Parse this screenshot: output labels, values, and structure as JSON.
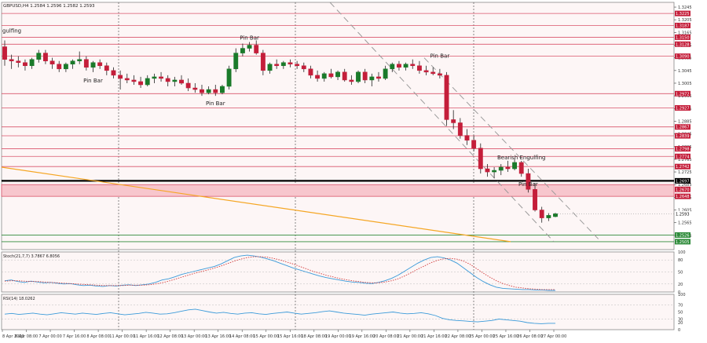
{
  "chart_data": [
    {
      "type": "candlestick",
      "title": "GBPUSD,H4  1.2584 1.2596 1.2582 1.2593",
      "ylim": [
        1.248,
        1.326
      ],
      "y_ticks": [
        "1.3245",
        "1.3205",
        "1.3165",
        "1.3125",
        "1.3085",
        "1.3045",
        "1.3005",
        "1.2965",
        "1.2925",
        "1.2885",
        "1.2845",
        "1.2805",
        "1.2765",
        "1.2725",
        "1.2685",
        "1.2645",
        "1.2605",
        "1.2565",
        "1.2525"
      ],
      "x_ticks": [
        "8 Apr 2022",
        "6 Apr 08:00",
        "7 Apr 00:00",
        "7 Apr 16:00",
        "8 Apr 08:00",
        "11 Apr 00:00",
        "11 Apr 16:00",
        "12 Apr 08:00",
        "13 Apr 00:00",
        "13 Apr 16:00",
        "14 Apr 08:00",
        "15 Apr 00:00",
        "15 Apr 16:00",
        "18 Apr 08:00",
        "19 Apr 00:00",
        "19 Apr 16:00",
        "20 Apr 08:00",
        "21 Apr 00:00",
        "21 Apr 16:00",
        "22 Apr 08:00",
        "25 Apr 00:00",
        "25 Apr 16:00",
        "26 Apr 08:00",
        "27 Apr 00:00"
      ],
      "candles": [
        [
          1.312,
          1.314,
          1.306,
          1.308
        ],
        [
          1.308,
          1.3095,
          1.305,
          1.3075
        ],
        [
          1.3075,
          1.309,
          1.3055,
          1.307
        ],
        [
          1.307,
          1.308,
          1.3045,
          1.306
        ],
        [
          1.306,
          1.3085,
          1.305,
          1.308
        ],
        [
          1.308,
          1.311,
          1.307,
          1.31
        ],
        [
          1.31,
          1.311,
          1.3065,
          1.3075
        ],
        [
          1.3075,
          1.3085,
          1.305,
          1.3065
        ],
        [
          1.3065,
          1.3075,
          1.304,
          1.305
        ],
        [
          1.305,
          1.307,
          1.304,
          1.3065
        ],
        [
          1.3065,
          1.308,
          1.305,
          1.3075
        ],
        [
          1.3075,
          1.3105,
          1.3065,
          1.308
        ],
        [
          1.308,
          1.309,
          1.3045,
          1.3055
        ],
        [
          1.3055,
          1.3075,
          1.304,
          1.307
        ],
        [
          1.307,
          1.308,
          1.305,
          1.306
        ],
        [
          1.306,
          1.307,
          1.303,
          1.3045
        ],
        [
          1.3045,
          1.3055,
          1.302,
          1.303
        ],
        [
          1.303,
          1.3045,
          1.2985,
          1.302
        ],
        [
          1.302,
          1.3035,
          1.3005,
          1.3015
        ],
        [
          1.3015,
          1.303,
          1.3,
          1.301
        ],
        [
          1.301,
          1.3025,
          1.299,
          1.3
        ],
        [
          1.3,
          1.303,
          1.2995,
          1.302
        ],
        [
          1.302,
          1.3035,
          1.3005,
          1.3025
        ],
        [
          1.3025,
          1.304,
          1.301,
          1.302
        ],
        [
          1.302,
          1.303,
          1.2995,
          1.301
        ],
        [
          1.301,
          1.3025,
          1.2995,
          1.3015
        ],
        [
          1.3015,
          1.303,
          1.3,
          1.3005
        ],
        [
          1.3005,
          1.302,
          1.298,
          1.299
        ],
        [
          1.299,
          1.3005,
          1.2975,
          1.2985
        ],
        [
          1.2985,
          1.3,
          1.2965,
          1.2975
        ],
        [
          1.2975,
          1.2995,
          1.297,
          1.2985
        ],
        [
          1.2985,
          1.3,
          1.2965,
          1.2975
        ],
        [
          1.2975,
          1.3,
          1.297,
          1.2995
        ],
        [
          1.2995,
          1.306,
          1.2985,
          1.305
        ],
        [
          1.305,
          1.3115,
          1.304,
          1.31
        ],
        [
          1.31,
          1.313,
          1.309,
          1.3115
        ],
        [
          1.3115,
          1.3135,
          1.3105,
          1.3125
        ],
        [
          1.3125,
          1.314,
          1.3095,
          1.31
        ],
        [
          1.31,
          1.311,
          1.303,
          1.3045
        ],
        [
          1.3045,
          1.307,
          1.3035,
          1.3065
        ],
        [
          1.3065,
          1.308,
          1.305,
          1.306
        ],
        [
          1.306,
          1.3075,
          1.305,
          1.307
        ],
        [
          1.307,
          1.308,
          1.3055,
          1.3065
        ],
        [
          1.3065,
          1.3075,
          1.305,
          1.306
        ],
        [
          1.306,
          1.307,
          1.304,
          1.305
        ],
        [
          1.305,
          1.306,
          1.302,
          1.303
        ],
        [
          1.303,
          1.3045,
          1.301,
          1.302
        ],
        [
          1.302,
          1.304,
          1.301,
          1.3035
        ],
        [
          1.3035,
          1.305,
          1.302,
          1.3025
        ],
        [
          1.3025,
          1.3045,
          1.3015,
          1.304
        ],
        [
          1.304,
          1.305,
          1.301,
          1.3015
        ],
        [
          1.3015,
          1.303,
          1.3,
          1.301
        ],
        [
          1.301,
          1.3045,
          1.3005,
          1.304
        ],
        [
          1.304,
          1.305,
          1.3005,
          1.3015
        ],
        [
          1.3015,
          1.3035,
          1.2995,
          1.3025
        ],
        [
          1.3025,
          1.304,
          1.301,
          1.302
        ],
        [
          1.302,
          1.306,
          1.3015,
          1.305
        ],
        [
          1.305,
          1.307,
          1.304,
          1.3065
        ],
        [
          1.3065,
          1.3075,
          1.3045,
          1.3055
        ],
        [
          1.3055,
          1.307,
          1.3045,
          1.3065
        ],
        [
          1.3065,
          1.308,
          1.305,
          1.306
        ],
        [
          1.306,
          1.3075,
          1.3035,
          1.3045
        ],
        [
          1.3045,
          1.306,
          1.303,
          1.304
        ],
        [
          1.304,
          1.3055,
          1.303,
          1.3035
        ],
        [
          1.3035,
          1.305,
          1.302,
          1.303
        ],
        [
          1.303,
          1.304,
          1.287,
          1.289
        ],
        [
          1.289,
          1.292,
          1.286,
          1.288
        ],
        [
          1.288,
          1.2895,
          1.283,
          1.284
        ],
        [
          1.284,
          1.286,
          1.281,
          1.2825
        ],
        [
          1.2825,
          1.284,
          1.279,
          1.28
        ],
        [
          1.28,
          1.2815,
          1.272,
          1.2735
        ],
        [
          1.2735,
          1.275,
          1.271,
          1.2725
        ],
        [
          1.2725,
          1.274,
          1.2705,
          1.273
        ],
        [
          1.273,
          1.275,
          1.2715,
          1.274
        ],
        [
          1.274,
          1.276,
          1.2725,
          1.2735
        ],
        [
          1.2735,
          1.2765,
          1.273,
          1.2755
        ],
        [
          1.2755,
          1.276,
          1.271,
          1.272
        ],
        [
          1.272,
          1.2735,
          1.266,
          1.267
        ],
        [
          1.267,
          1.269,
          1.26,
          1.2605
        ],
        [
          1.2605,
          1.2615,
          1.2565,
          1.258
        ],
        [
          1.258,
          1.2595,
          1.257,
          1.2588
        ],
        [
          1.2584,
          1.2596,
          1.2582,
          1.2593
        ]
      ],
      "labels": [
        {
          "text": "gulfing",
          "kind": "clipped-left"
        },
        {
          "text": "Pin Bar",
          "at": "candle-13-low"
        },
        {
          "text": "Pin Bar",
          "at": "candle-31-low"
        },
        {
          "text": "Pin Bar",
          "at": "candle-36-high"
        },
        {
          "text": "Pin Bar",
          "at": "candle-64-high"
        },
        {
          "text": "Bearish Engulfing",
          "at": "candle-76-high"
        },
        {
          "text": "Pin Bar",
          "at": "candle-77-low"
        }
      ],
      "levels": [
        1.3225,
        1.3187,
        1.315,
        1.3128,
        1.309,
        1.2972,
        1.2927,
        1.2867,
        1.2839,
        1.2798,
        1.2774,
        1.2742
      ],
      "resistance_zone": [
        1.2648,
        1.2685
      ],
      "key_level": 1.2697,
      "support_levels": [
        1.2526,
        1.2505
      ],
      "price_tags": [
        "1.3225",
        "1.3187",
        "1.3150",
        "1.3128",
        "1.3090",
        "1.2972",
        "1.2927",
        "1.2867",
        "1.2839",
        "1.2798",
        "1.2774",
        "1.2742",
        "1.2697",
        "1.2670",
        "1.2648",
        "1.2593",
        "1.2526",
        "1.2505"
      ],
      "colors": {
        "bull": "#1a7a2a",
        "bear": "#c41e3a",
        "level": "#d9536a",
        "zone": "#f7c6cd",
        "trendline": "#f5a623",
        "channel": "#9a9a9a",
        "tag_bg": "#c41e3a"
      }
    },
    {
      "type": "line",
      "title": "Stoch(21,7,7) 3.7867 6.8056",
      "ylim": [
        0,
        100
      ],
      "y_ticks": [
        "100",
        "80",
        "50",
        "20",
        "0"
      ],
      "series": [
        {
          "name": "main",
          "color": "#3a9ad9",
          "style": "solid",
          "values": [
            28,
            30,
            26,
            24,
            27,
            25,
            23,
            24,
            22,
            20,
            21,
            18,
            16,
            17,
            15,
            14,
            16,
            15,
            17,
            18,
            16,
            18,
            20,
            24,
            30,
            33,
            38,
            44,
            48,
            52,
            56,
            60,
            64,
            70,
            78,
            86,
            90,
            92,
            90,
            87,
            83,
            78,
            72,
            66,
            60,
            55,
            50,
            45,
            40,
            36,
            33,
            30,
            27,
            25,
            24,
            22,
            21,
            24,
            28,
            34,
            42,
            52,
            62,
            72,
            80,
            86,
            88,
            85,
            80,
            72,
            60,
            48,
            36,
            26,
            18,
            12,
            9,
            8,
            7,
            6,
            6,
            5,
            5,
            4,
            4
          ]
        },
        {
          "name": "signal",
          "color": "#d33b3b",
          "style": "dotted",
          "values": [
            27,
            28,
            28,
            27,
            26,
            26,
            25,
            24,
            23,
            22,
            21,
            20,
            19,
            18,
            17,
            16,
            16,
            16,
            16,
            17,
            17,
            17,
            18,
            20,
            23,
            27,
            32,
            37,
            42,
            47,
            51,
            55,
            60,
            65,
            71,
            77,
            82,
            86,
            88,
            88,
            87,
            84,
            80,
            75,
            70,
            64,
            58,
            52,
            47,
            42,
            38,
            34,
            31,
            28,
            26,
            24,
            23,
            23,
            25,
            28,
            33,
            40,
            48,
            57,
            65,
            73,
            79,
            83,
            84,
            82,
            77,
            69,
            58,
            47,
            37,
            28,
            21,
            16,
            12,
            10,
            8,
            7,
            6,
            6,
            6
          ]
        }
      ]
    },
    {
      "type": "line",
      "title": "RSI(14) 18.0262",
      "ylim": [
        0,
        100
      ],
      "y_ticks": [
        "100",
        "70",
        "50",
        "30",
        "20",
        "0"
      ],
      "series": [
        {
          "name": "rsi",
          "color": "#3a9ad9",
          "style": "solid",
          "values": [
            44,
            46,
            43,
            45,
            47,
            44,
            42,
            45,
            48,
            46,
            44,
            47,
            45,
            43,
            46,
            48,
            45,
            42,
            44,
            46,
            49,
            47,
            44,
            45,
            48,
            52,
            56,
            58,
            54,
            50,
            47,
            49,
            46,
            44,
            47,
            48,
            45,
            43,
            46,
            48,
            50,
            47,
            44,
            46,
            48,
            51,
            53,
            50,
            47,
            45,
            43,
            41,
            44,
            46,
            48,
            50,
            47,
            45,
            46,
            48,
            45,
            40,
            32,
            28,
            26,
            25,
            23,
            22,
            24,
            26,
            30,
            28,
            26,
            24,
            20,
            18,
            17,
            18,
            18
          ]
        }
      ]
    }
  ]
}
